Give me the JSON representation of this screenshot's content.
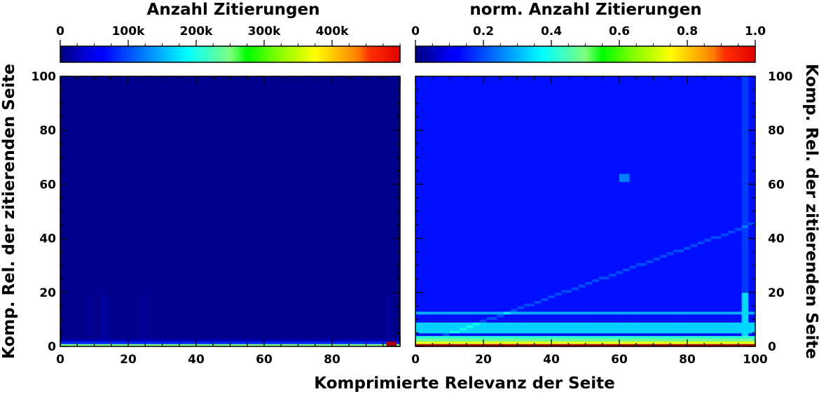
{
  "chart_data": [
    {
      "type": "heatmap",
      "title": "Anzahl Zitierungen",
      "xlabel": "Komprimierte Relevanz der Seite",
      "ylabel": "Komp. Rel. der zitierenden Seite",
      "xlim": [
        0,
        100
      ],
      "ylim": [
        0,
        100
      ],
      "x_ticks": [
        "0",
        "20",
        "40",
        "60",
        "80"
      ],
      "y_ticks": [
        "0",
        "20",
        "40",
        "60",
        "80",
        "100"
      ],
      "colorbar": {
        "colormap": "jet",
        "range": [
          0,
          500000
        ],
        "ticks": [
          0,
          100000,
          200000,
          300000,
          400000
        ],
        "tick_labels": [
          "0",
          "100k",
          "200k",
          "300k",
          "400k"
        ]
      },
      "grid": false,
      "value_summary": {
        "background": 6000,
        "row_y0": 250000,
        "row_y1": 80000,
        "bright_columns_x": [
          8,
          12,
          13,
          24,
          96
        ],
        "hot_spot": {
          "x": 97,
          "y": 0,
          "value": 480000
        }
      }
    },
    {
      "type": "heatmap",
      "title": "norm. Anzahl Zitierungen",
      "xlabel": "Komprimierte Relevanz der Seite",
      "ylabel": "Komp. Rel. der zitierenden Seite",
      "xlim": [
        0,
        100
      ],
      "ylim": [
        0,
        100
      ],
      "x_ticks": [
        "0",
        "20",
        "40",
        "60",
        "80",
        "100"
      ],
      "y_ticks": [
        "0",
        "20",
        "40",
        "60",
        "80",
        "100"
      ],
      "colorbar": {
        "colormap": "jet",
        "range": [
          0,
          1
        ],
        "ticks": [
          0,
          0.2,
          0.4,
          0.6,
          0.8,
          1.0
        ],
        "tick_labels": [
          "0",
          "0.2",
          "0.4",
          "0.6",
          "0.8",
          "1.0"
        ]
      },
      "grid": false,
      "value_summary": {
        "background": 0.14,
        "row_y0": 0.97,
        "row_y1": 0.6,
        "row_y2": 0.48,
        "row_y3": 0.42,
        "row_y5_to_8": 0.33,
        "row_y12": 0.3,
        "diagonal_enhancement": 0.06,
        "bright_columns_x": [
          96,
          97
        ],
        "hot_spot": {
          "x": 61,
          "y": 62,
          "value": 0.25
        }
      }
    }
  ]
}
